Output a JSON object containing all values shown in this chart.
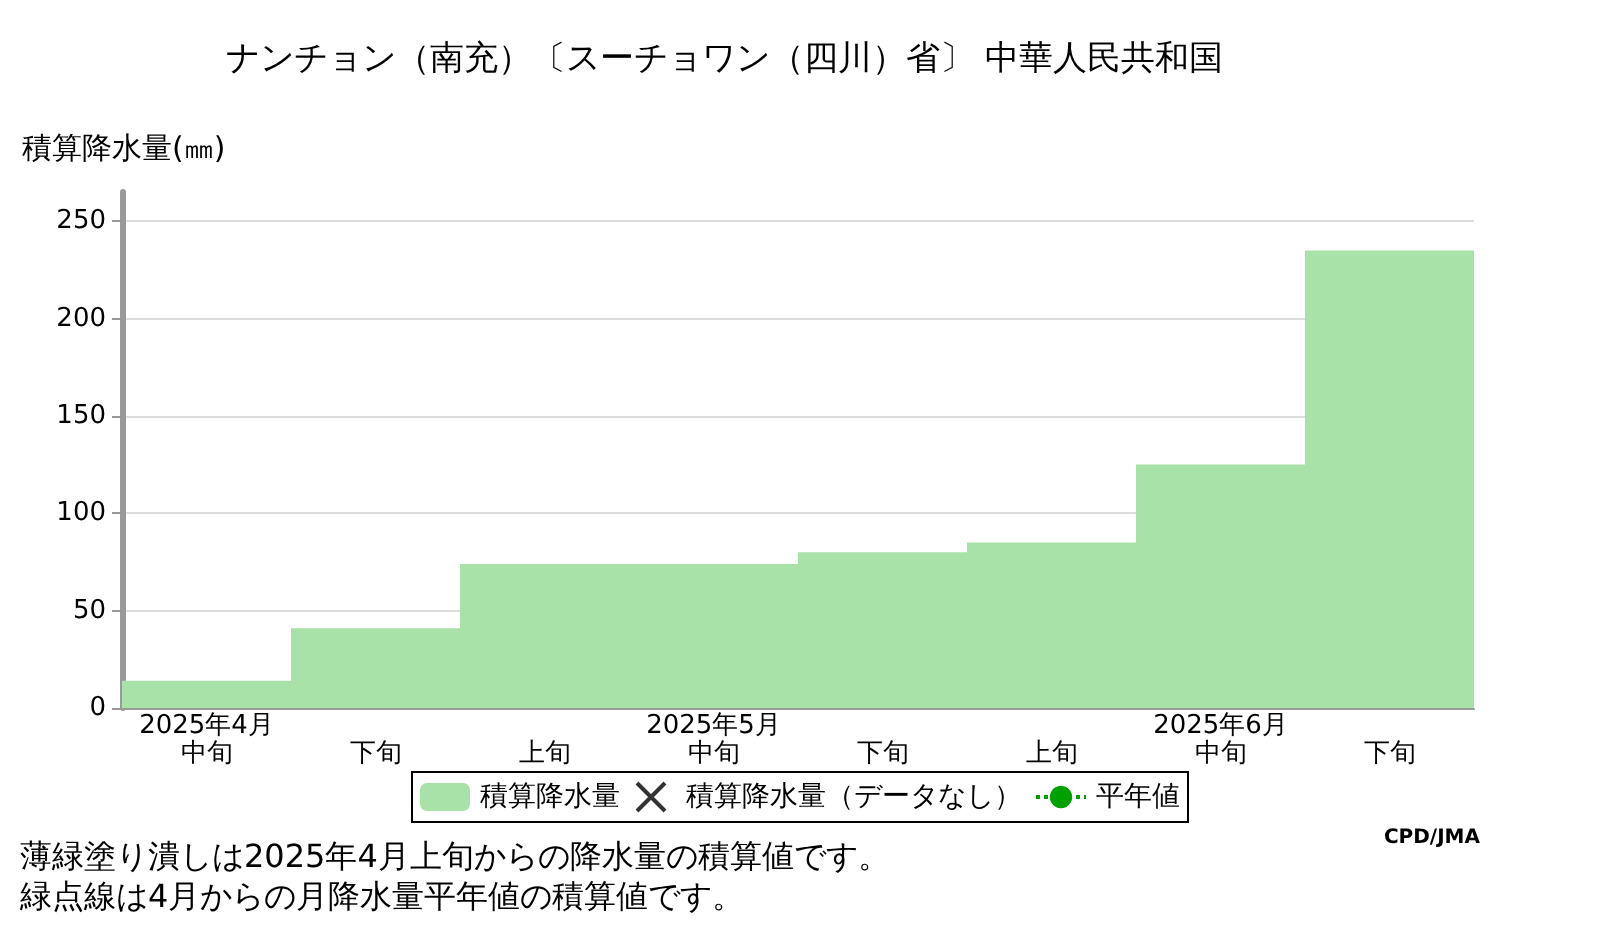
{
  "chart_data": {
    "type": "bar",
    "title": "ナンチョン（南充）〔スーチョワン（四川）省〕 中華人民共和国",
    "ylabel": "積算降水量(㎜)",
    "categories": [
      "2025年4月中旬",
      "下旬",
      "上旬",
      "2025年5月中旬",
      "下旬",
      "上旬",
      "2025年6月中旬",
      "下旬"
    ],
    "series": [
      {
        "name": "積算降水量",
        "color": "#a8e2a8",
        "values": [
          14,
          41,
          74,
          74,
          80,
          85,
          125,
          235
        ]
      },
      {
        "name": "積算降水量（データなし）",
        "type": "scatter",
        "marker": "cross",
        "color": "#000000",
        "values": [
          null,
          null,
          null,
          null,
          null,
          null,
          null,
          null
        ]
      },
      {
        "name": "平年値",
        "type": "line",
        "line_style": "dotted",
        "marker": "none",
        "color": "#00a000",
        "values": [
          null,
          null,
          null,
          null,
          null,
          null,
          null,
          null
        ]
      }
    ],
    "ylim": [
      0,
      265
    ],
    "yticks": [
      0,
      50,
      100,
      150,
      200,
      250
    ],
    "grid": "y",
    "legend": "bottom",
    "annotations": [
      "CPD/JMA",
      "薄緑塗り潰しは2025年4月上旬からの降水量の積算値です。",
      "緑点線は4月からの月降水量平年値の積算値です。"
    ]
  }
}
